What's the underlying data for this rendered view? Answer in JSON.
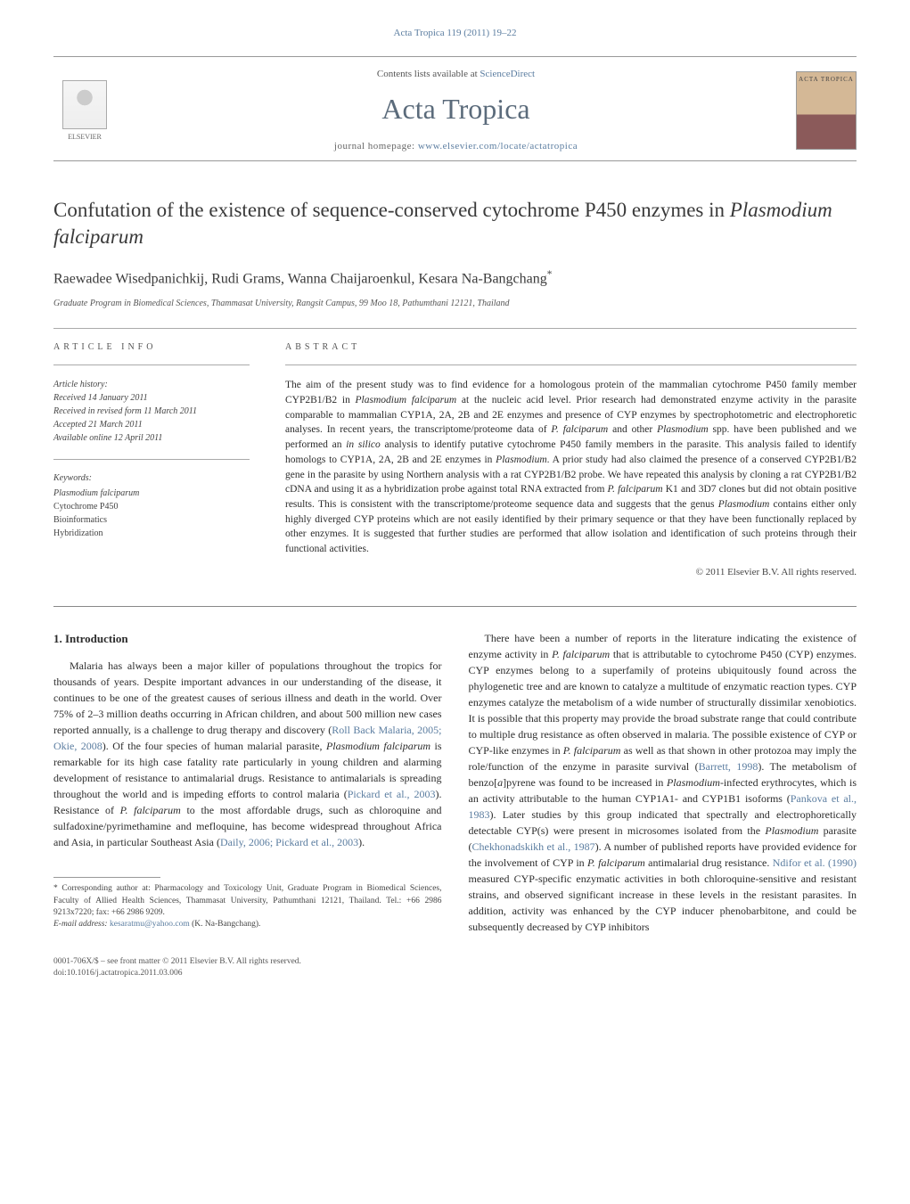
{
  "header": {
    "journal_ref": "Acta Tropica 119 (2011) 19–22",
    "contents_text": "Contents lists available at ",
    "contents_link": "ScienceDirect",
    "journal_name": "Acta Tropica",
    "homepage_label": "journal homepage: ",
    "homepage_url": "www.elsevier.com/locate/actatropica",
    "publisher_name": "ELSEVIER",
    "cover_label": "ACTA TROPICA"
  },
  "article": {
    "title_pre": "Confutation of the existence of sequence-conserved cytochrome P450 enzymes in ",
    "title_ital": "Plasmodium falciparum",
    "authors": "Raewadee Wisedpanichkij, Rudi Grams, Wanna Chaijaroenkul, Kesara Na-Bangchang",
    "author_mark": "*",
    "affiliation": "Graduate Program in Biomedical Sciences, Thammasat University, Rangsit Campus, 99 Moo 18, Pathumthani 12121, Thailand"
  },
  "meta": {
    "info_label": "article info",
    "abstract_label": "abstract",
    "history_label": "Article history:",
    "received": "Received 14 January 2011",
    "revised": "Received in revised form 11 March 2011",
    "accepted": "Accepted 21 March 2011",
    "online": "Available online 12 April 2011",
    "keywords_label": "Keywords:",
    "keywords": [
      {
        "text": "Plasmodium falciparum",
        "ital": true
      },
      {
        "text": "Cytochrome P450",
        "ital": false
      },
      {
        "text": "Bioinformatics",
        "ital": false
      },
      {
        "text": "Hybridization",
        "ital": false
      }
    ]
  },
  "abstract": {
    "text_parts": [
      {
        "t": "The aim of the present study was to find evidence for a homologous protein of the mammalian cytochrome P450 family member CYP2B1/B2 in ",
        "i": false
      },
      {
        "t": "Plasmodium falciparum",
        "i": true
      },
      {
        "t": " at the nucleic acid level. Prior research had demonstrated enzyme activity in the parasite comparable to mammalian CYP1A, 2A, 2B and 2E enzymes and presence of CYP enzymes by spectrophotometric and electrophoretic analyses. In recent years, the transcriptome/proteome data of ",
        "i": false
      },
      {
        "t": "P. falciparum",
        "i": true
      },
      {
        "t": " and other ",
        "i": false
      },
      {
        "t": "Plasmodium",
        "i": true
      },
      {
        "t": " spp. have been published and we performed an ",
        "i": false
      },
      {
        "t": "in silico",
        "i": true
      },
      {
        "t": " analysis to identify putative cytochrome P450 family members in the parasite. This analysis failed to identify homologs to CYP1A, 2A, 2B and 2E enzymes in ",
        "i": false
      },
      {
        "t": "Plasmodium",
        "i": true
      },
      {
        "t": ". A prior study had also claimed the presence of a conserved CYP2B1/B2 gene in the parasite by using Northern analysis with a rat CYP2B1/B2 probe. We have repeated this analysis by cloning a rat CYP2B1/B2 cDNA and using it as a hybridization probe against total RNA extracted from ",
        "i": false
      },
      {
        "t": "P. falciparum",
        "i": true
      },
      {
        "t": " K1 and 3D7 clones but did not obtain positive results. This is consistent with the transcriptome/proteome sequence data and suggests that the genus ",
        "i": false
      },
      {
        "t": "Plasmodium",
        "i": true
      },
      {
        "t": " contains either only highly diverged CYP proteins which are not easily identified by their primary sequence or that they have been functionally replaced by other enzymes. It is suggested that further studies are performed that allow isolation and identification of such proteins through their functional activities.",
        "i": false
      }
    ],
    "copyright": "© 2011 Elsevier B.V. All rights reserved."
  },
  "body": {
    "heading": "1.  Introduction",
    "col1_parts": [
      {
        "t": "Malaria has always been a major killer of populations throughout the tropics for thousands of years. Despite important advances in our understanding of the disease, it continues to be one of the greatest causes of serious illness and death in the world. Over 75% of 2–3 million deaths occurring in African children, and about 500 million new cases reported annually, is a challenge to drug therapy and discovery (",
        "i": false,
        "c": false
      },
      {
        "t": "Roll Back Malaria, 2005; Okie, 2008",
        "i": false,
        "c": true
      },
      {
        "t": "). Of the four species of human malarial parasite, ",
        "i": false,
        "c": false
      },
      {
        "t": "Plasmodium falciparum",
        "i": true,
        "c": false
      },
      {
        "t": " is remarkable for its high case fatality rate particularly in young children and alarming development of resistance to antimalarial drugs. Resistance to antimalarials is spreading throughout the world and is impeding efforts to control malaria (",
        "i": false,
        "c": false
      },
      {
        "t": "Pickard et al., 2003",
        "i": false,
        "c": true
      },
      {
        "t": "). Resistance of ",
        "i": false,
        "c": false
      },
      {
        "t": "P. falciparum",
        "i": true,
        "c": false
      },
      {
        "t": " to the most affordable drugs, such as chloroquine and sulfadoxine/pyrimethamine and mefloquine, has become widespread throughout Africa and Asia, in particular Southeast Asia (",
        "i": false,
        "c": false
      },
      {
        "t": "Daily, 2006; Pickard et al., 2003",
        "i": false,
        "c": true
      },
      {
        "t": ").",
        "i": false,
        "c": false
      }
    ],
    "col2_parts": [
      {
        "t": "There have been a number of reports in the literature indicating the existence of enzyme activity in ",
        "i": false,
        "c": false
      },
      {
        "t": "P. falciparum",
        "i": true,
        "c": false
      },
      {
        "t": " that is attributable to cytochrome P450 (CYP) enzymes. CYP enzymes belong to a superfamily of proteins ubiquitously found across the phylogenetic tree and are known to catalyze a multitude of enzymatic reaction types. CYP enzymes catalyze the metabolism of a wide number of structurally dissimilar xenobiotics. It is possible that this property may provide the broad substrate range that could contribute to multiple drug resistance as often observed in malaria. The possible existence of CYP or CYP-like enzymes in ",
        "i": false,
        "c": false
      },
      {
        "t": "P. falciparum",
        "i": true,
        "c": false
      },
      {
        "t": " as well as that shown in other protozoa may imply the role/function of the enzyme in parasite survival (",
        "i": false,
        "c": false
      },
      {
        "t": "Barrett, 1998",
        "i": false,
        "c": true
      },
      {
        "t": "). The metabolism of benzo[",
        "i": false,
        "c": false
      },
      {
        "t": "a",
        "i": true,
        "c": false
      },
      {
        "t": "]pyrene was found to be increased in ",
        "i": false,
        "c": false
      },
      {
        "t": "Plasmodium",
        "i": true,
        "c": false
      },
      {
        "t": "-infected erythrocytes, which is an activity attributable to the human CYP1A1- and CYP1B1 isoforms (",
        "i": false,
        "c": false
      },
      {
        "t": "Pankova et al., 1983",
        "i": false,
        "c": true
      },
      {
        "t": "). Later studies by this group indicated that spectrally and electrophoretically detectable CYP(s) were present in microsomes isolated from the ",
        "i": false,
        "c": false
      },
      {
        "t": "Plasmodium",
        "i": true,
        "c": false
      },
      {
        "t": " parasite (",
        "i": false,
        "c": false
      },
      {
        "t": "Chekhonadskikh et al., 1987",
        "i": false,
        "c": true
      },
      {
        "t": "). A number of published reports have provided evidence for the involvement of CYP in ",
        "i": false,
        "c": false
      },
      {
        "t": "P. falciparum",
        "i": true,
        "c": false
      },
      {
        "t": " antimalarial drug resistance. ",
        "i": false,
        "c": false
      },
      {
        "t": "Ndifor et al. (1990)",
        "i": false,
        "c": true
      },
      {
        "t": " measured CYP-specific enzymatic activities in both chloroquine-sensitive and resistant strains, and observed significant increase in these levels in the resistant parasites. In addition, activity was enhanced by the CYP inducer phenobarbitone, and could be subsequently decreased by CYP inhibitors",
        "i": false,
        "c": false
      }
    ]
  },
  "footnote": {
    "corr_label": "* Corresponding author at: Pharmacology and Toxicology Unit, Graduate Program in Biomedical Sciences, Faculty of Allied Health Sciences, Thammasat University, Pathumthani 12121, Thailand. Tel.: +66 2986 9213x7220; fax: +66 2986 9209.",
    "email_label": "E-mail address: ",
    "email": "kesaratmu@yahoo.com",
    "email_suffix": " (K. Na-Bangchang)."
  },
  "footer": {
    "line1": "0001-706X/$ – see front matter © 2011 Elsevier B.V. All rights reserved.",
    "line2": "doi:10.1016/j.actatropica.2011.03.006"
  },
  "colors": {
    "link": "#5b7da0",
    "text": "#2c2c2c",
    "muted": "#555",
    "rule": "#999",
    "journal_title": "#5b6b7b"
  }
}
